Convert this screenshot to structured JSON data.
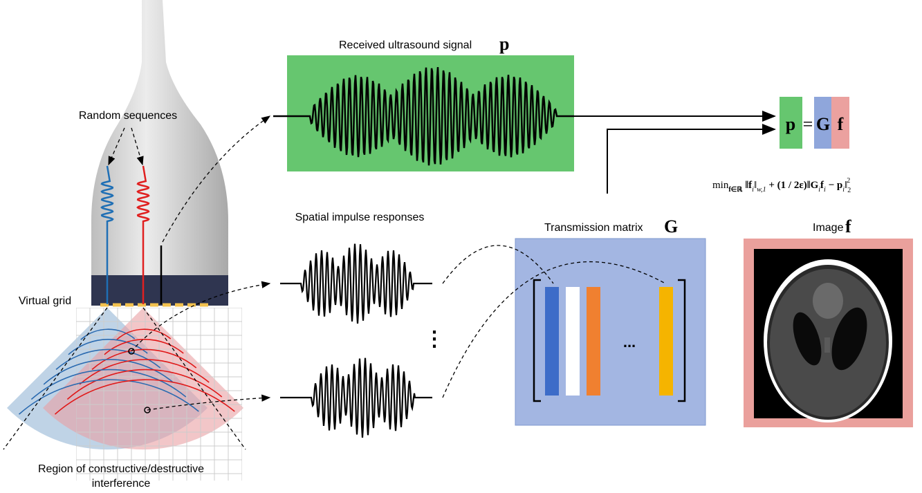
{
  "signal": {
    "label": "Received ultrasound signal",
    "symbol": "p"
  },
  "probe": {
    "random_label": "Random sequences",
    "grid_label": "Virtual grid",
    "region_label_1": "Region of constructive/destructive",
    "region_label_2": "interference"
  },
  "impulse": {
    "label": "Spatial impulse responses",
    "ellipsis": "⋮"
  },
  "matrix": {
    "label": "Transmission matrix",
    "symbol": "G",
    "ellipsis": "..."
  },
  "image": {
    "label": "Image",
    "symbol": "f"
  },
  "equation": {
    "lhs": "p",
    "eq": "=",
    "g": "G",
    "f": "f"
  },
  "objective": [
    "min",
    "f∈ℝ",
    "‖f",
    "i",
    "‖",
    "w,1",
    " + (1 / 2ε)‖G",
    "i",
    "f",
    "i",
    " − p",
    "i",
    "‖",
    "2",
    "2"
  ]
}
